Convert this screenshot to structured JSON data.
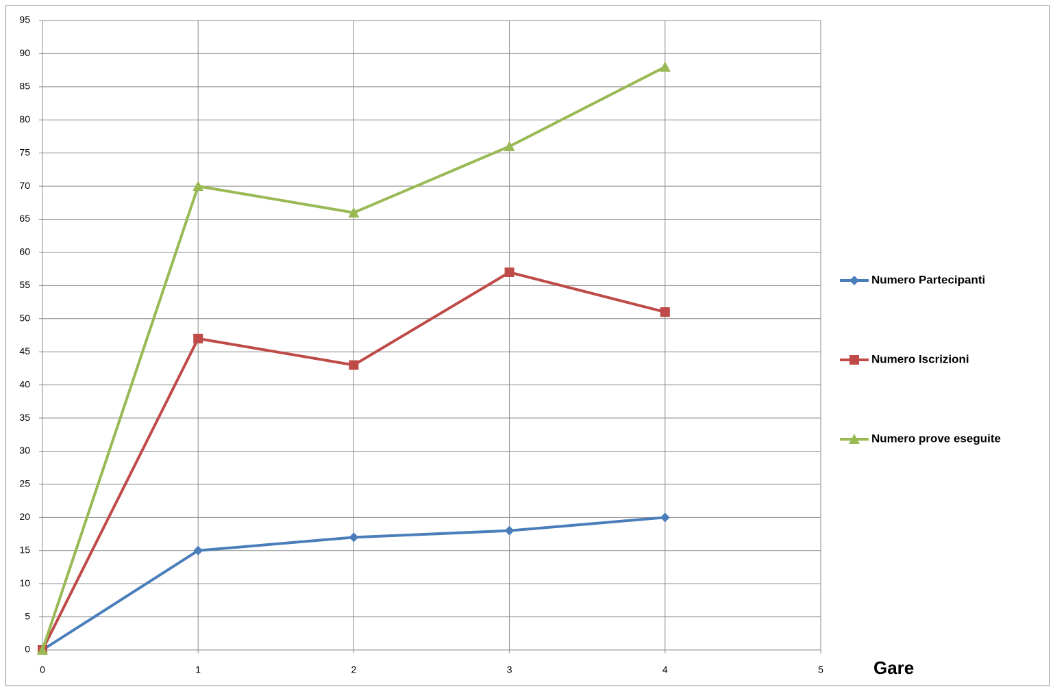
{
  "chart_data": {
    "type": "line",
    "x_label": "Gare",
    "x": [
      0,
      1,
      2,
      3,
      4
    ],
    "series": [
      {
        "name": "Numero Partecipanti",
        "color": "#4a7ebb",
        "marker": "diamond",
        "values": [
          0,
          15,
          17,
          18,
          20
        ]
      },
      {
        "name": "Numero Iscrizioni",
        "color": "#be4b48",
        "marker": "square",
        "values": [
          0,
          47,
          43,
          57,
          51
        ]
      },
      {
        "name": "Numero prove eseguite",
        "color": "#98b954",
        "marker": "triangle",
        "values": [
          0,
          70,
          66,
          76,
          88
        ]
      }
    ],
    "xlim": [
      0,
      5
    ],
    "xticks": [
      0,
      1,
      2,
      3,
      4,
      5
    ],
    "ylim": [
      0,
      95
    ],
    "yticks": [
      0,
      5,
      10,
      15,
      20,
      25,
      30,
      35,
      40,
      45,
      50,
      55,
      60,
      65,
      70,
      75,
      80,
      85,
      90,
      95
    ],
    "grid": true,
    "legend": "right"
  }
}
